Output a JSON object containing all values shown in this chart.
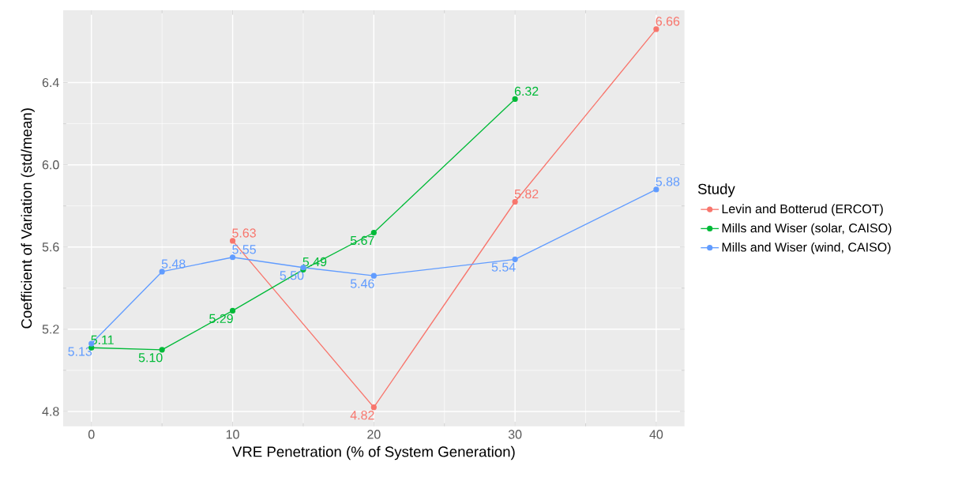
{
  "chart_data": {
    "type": "line",
    "xlabel": "VRE Penetration (% of System Generation)",
    "ylabel": "Coefficient of Variation (std/mean)",
    "legend_title": "Study",
    "xlim": [
      -2,
      42
    ],
    "ylim": [
      4.728,
      6.752
    ],
    "xticks": [
      0,
      10,
      20,
      30,
      40
    ],
    "yticks": [
      4.8,
      5.2,
      5.6,
      {
        "value": 6.0,
        "label": "6.0"
      },
      6.4
    ],
    "grid": true,
    "legend": "right",
    "marker": "circle",
    "series": [
      {
        "name": "Levin and Botterud (ERCOT)",
        "color": "#f8766d",
        "x": [
          10,
          20,
          30,
          40
        ],
        "values": [
          5.63,
          4.82,
          5.82,
          6.66
        ],
        "value_labels": [
          "5.63",
          "4.82",
          "5.82",
          "6.66"
        ]
      },
      {
        "name": "Mills and Wiser (solar, CAISO)",
        "color": "#00ba38",
        "x": [
          0,
          5,
          10,
          15,
          20,
          30
        ],
        "values": [
          5.11,
          5.1,
          5.29,
          5.49,
          5.67,
          6.32
        ],
        "value_labels": [
          "5.11",
          "5.10",
          "5.29",
          "5.49",
          "5.67",
          "6.32"
        ]
      },
      {
        "name": "Mills and Wiser (wind, CAISO)",
        "color": "#619cff",
        "x": [
          0,
          5,
          10,
          15,
          20,
          30,
          40
        ],
        "values": [
          5.13,
          5.48,
          5.55,
          5.5,
          5.46,
          5.54,
          5.88
        ],
        "value_labels": [
          "5.13",
          "5.48",
          "5.55",
          "5.50",
          "5.46",
          "5.54",
          "5.88"
        ]
      }
    ]
  }
}
